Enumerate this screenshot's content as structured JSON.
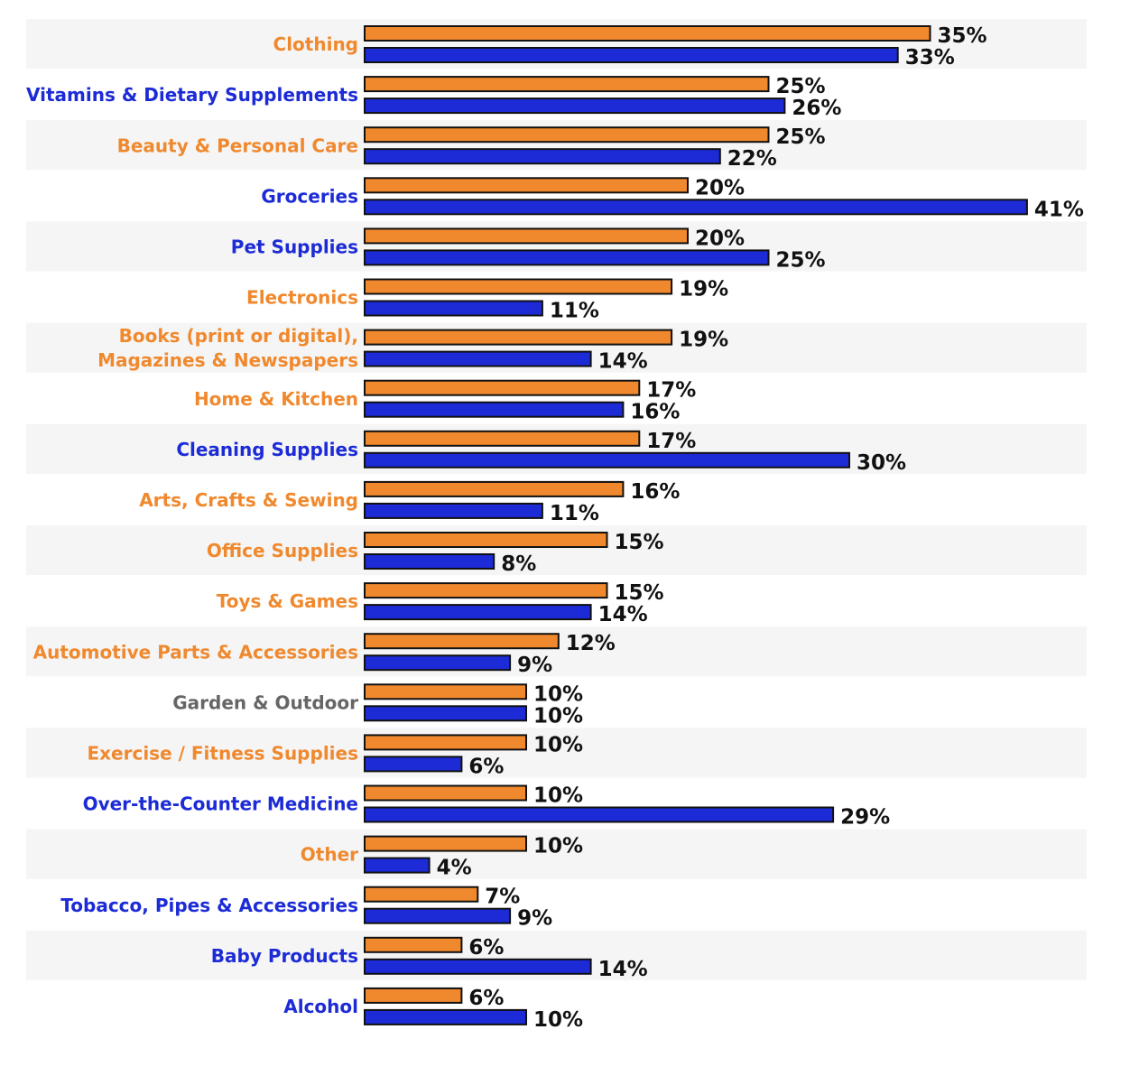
{
  "chart_data": {
    "type": "bar",
    "orientation": "horizontal",
    "legend": "none",
    "grid": false,
    "xlim": [
      0,
      41
    ],
    "categories": [
      "Clothing",
      "Vitamins & Dietary Supplements",
      "Beauty & Personal Care",
      "Groceries",
      "Pet Supplies",
      "Electronics",
      "Books (print or digital), Magazines & Newspapers",
      "Home & Kitchen",
      "Cleaning Supplies",
      "Arts, Crafts & Sewing",
      "Office Supplies",
      "Toys & Games",
      "Automotive Parts & Accessories",
      "Garden & Outdoor",
      "Exercise / Fitness Supplies",
      "Over-the-Counter Medicine",
      "Other",
      "Tobacco, Pipes & Accessories",
      "Baby Products",
      "Alcohol"
    ],
    "category_label_lines": [
      [
        "Clothing"
      ],
      [
        "Vitamins & Dietary Supplements"
      ],
      [
        "Beauty & Personal Care"
      ],
      [
        "Groceries"
      ],
      [
        "Pet Supplies"
      ],
      [
        "Electronics"
      ],
      [
        "Books (print or digital),",
        "Magazines & Newspapers"
      ],
      [
        "Home & Kitchen"
      ],
      [
        "Cleaning Supplies"
      ],
      [
        "Arts, Crafts & Sewing"
      ],
      [
        "Office Supplies"
      ],
      [
        "Toys & Games"
      ],
      [
        "Automotive Parts & Accessories"
      ],
      [
        "Garden & Outdoor"
      ],
      [
        "Exercise / Fitness Supplies"
      ],
      [
        "Over-the-Counter Medicine"
      ],
      [
        "Other"
      ],
      [
        "Tobacco, Pipes & Accessories"
      ],
      [
        "Baby Products"
      ],
      [
        "Alcohol"
      ]
    ],
    "category_label_colors": [
      "#f0892e",
      "#1c2bd6",
      "#f0892e",
      "#1c2bd6",
      "#1c2bd6",
      "#f0892e",
      "#f0892e",
      "#f0892e",
      "#1c2bd6",
      "#f0892e",
      "#f0892e",
      "#f0892e",
      "#f0892e",
      "#666666",
      "#f0892e",
      "#1c2bd6",
      "#f0892e",
      "#1c2bd6",
      "#1c2bd6",
      "#1c2bd6"
    ],
    "series": [
      {
        "color": "#f0892e",
        "values": [
          35,
          25,
          25,
          20,
          20,
          19,
          19,
          17,
          17,
          16,
          15,
          15,
          12,
          10,
          10,
          10,
          10,
          7,
          6,
          6
        ],
        "labels": [
          "35%",
          "25%",
          "25%",
          "20%",
          "20%",
          "19%",
          "19%",
          "17%",
          "17%",
          "16%",
          "15%",
          "15%",
          "12%",
          "10%",
          "10%",
          "10%",
          "10%",
          "7%",
          "6%",
          "6%"
        ]
      },
      {
        "color": "#1c2bd6",
        "values": [
          33,
          26,
          22,
          41,
          25,
          11,
          14,
          16,
          30,
          11,
          8,
          14,
          9,
          10,
          6,
          29,
          4,
          9,
          14,
          10
        ],
        "labels": [
          "33%",
          "26%",
          "22%",
          "41%",
          "25%",
          "11%",
          "14%",
          "16%",
          "30%",
          "11%",
          "8%",
          "14%",
          "9%",
          "10%",
          "6%",
          "29%",
          "4%",
          "9%",
          "14%",
          "10%"
        ]
      }
    ],
    "colors": {
      "band": "#f5f5f5",
      "bar_outline": "#111111",
      "value_label": "#111111"
    }
  }
}
